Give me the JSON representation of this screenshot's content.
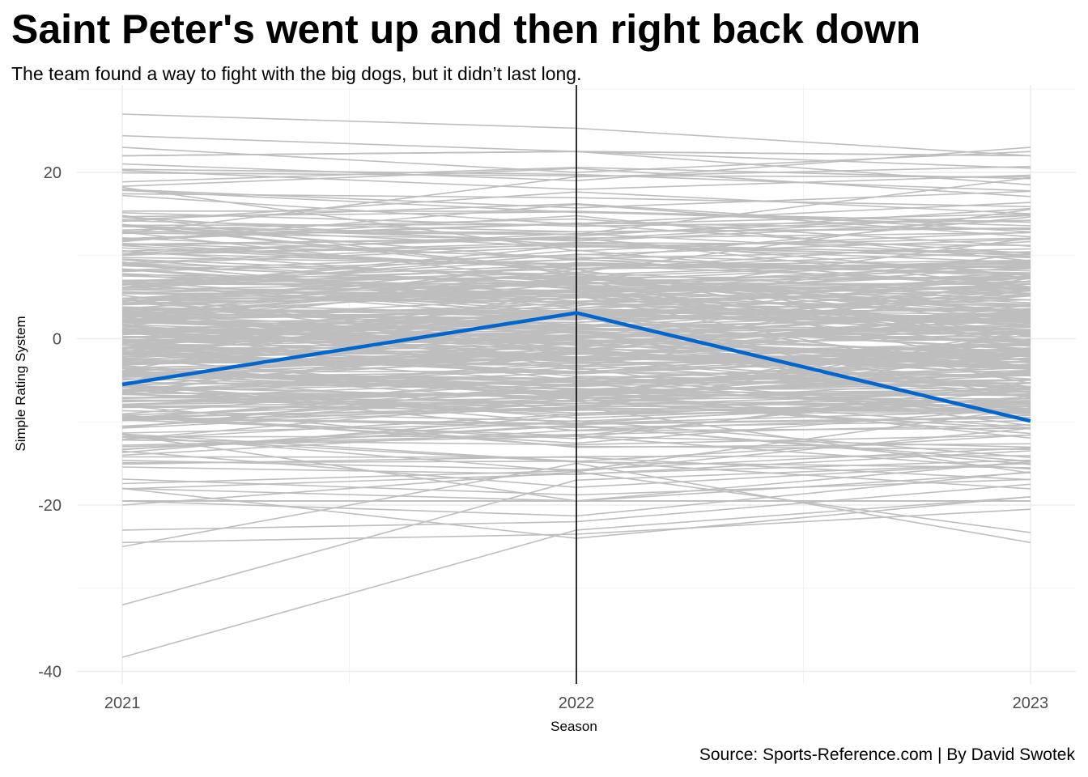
{
  "title": "Saint Peter's went up and then right back down",
  "subtitle": "The team found a way to fight with the big dogs, but it didn’t last long.",
  "caption": "Source: Sports-Reference.com | By David Swotek",
  "chart_data": {
    "type": "line",
    "xlabel": "Season",
    "ylabel": "Simple Rating System",
    "x": [
      2021,
      2022,
      2023
    ],
    "x_tick_labels": [
      "2021",
      "2022",
      "2023"
    ],
    "y_ticks": [
      -40,
      -20,
      0,
      20
    ],
    "y_tick_labels": [
      "-40",
      "-20",
      "0",
      "20"
    ],
    "xlim": [
      2020.9,
      2023.1
    ],
    "ylim": [
      -41.5,
      30.5
    ],
    "grid": true,
    "legend": "none",
    "reference_line_x": 2022,
    "highlight_color": "#0066cc",
    "background_color": "#bebebe",
    "highlight_series": {
      "values": [
        -5.5,
        3.1,
        -9.9
      ]
    },
    "background_series_count": 358,
    "background_extremes": [
      [
        27.0,
        25.3,
        22.0
      ],
      [
        24.4,
        22.5,
        20.5
      ],
      [
        23.0,
        20.0,
        22.5
      ],
      [
        22.0,
        22.5,
        18.5
      ],
      [
        21.0,
        19.0,
        23.0
      ],
      [
        -19.5,
        -21.3,
        -16.0
      ],
      [
        -23.0,
        -22.0,
        -17.5
      ],
      [
        -24.5,
        -23.5,
        -20.5
      ],
      [
        -25.0,
        -15.0,
        -24.5
      ],
      [
        -32.0,
        -17.0,
        -15.0
      ],
      [
        -38.3,
        -23.0,
        -19.0
      ],
      [
        -18.0,
        -24.0,
        -19.0
      ],
      [
        -20.0,
        -16.0,
        -23.3
      ]
    ]
  }
}
